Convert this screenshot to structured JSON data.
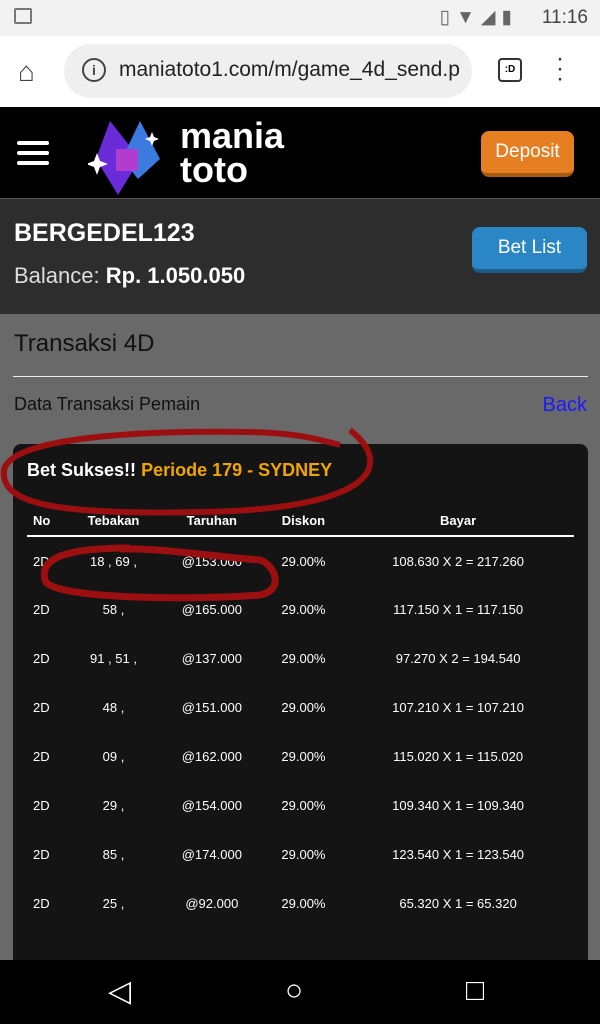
{
  "status_bar": {
    "time": "11:16"
  },
  "browser": {
    "url": "maniatoto1.com/m/game_4d_send.p",
    "tabs_label": ":D"
  },
  "header": {
    "logo_top": "mania",
    "logo_bottom": "toto",
    "deposit_label": "Deposit"
  },
  "user": {
    "username": "BERGEDEL123",
    "balance_label": "Balance:",
    "balance_value": "Rp. 1.050.050",
    "bet_list_label": "Bet List"
  },
  "page": {
    "title": "Transaksi 4D",
    "subtitle": "Data Transaksi Pemain",
    "back_label": "Back"
  },
  "result": {
    "status": "Bet Sukses!!",
    "period": "Periode 179 - SYDNEY"
  },
  "table": {
    "headers": [
      "No",
      "Tebakan",
      "Taruhan",
      "Diskon",
      "Bayar"
    ],
    "rows": [
      [
        "2D",
        "18 , 69 ,",
        "@153.000",
        "29.00%",
        "108.630 X 2 = 217.260"
      ],
      [
        "2D",
        "58 ,",
        "@165.000",
        "29.00%",
        "117.150 X 1 = 117.150"
      ],
      [
        "2D",
        "91 , 51 ,",
        "@137.000",
        "29.00%",
        "97.270 X 2 = 194.540"
      ],
      [
        "2D",
        "48 ,",
        "@151.000",
        "29.00%",
        "107.210 X 1 = 107.210"
      ],
      [
        "2D",
        "09 ,",
        "@162.000",
        "29.00%",
        "115.020 X 1 = 115.020"
      ],
      [
        "2D",
        "29 ,",
        "@154.000",
        "29.00%",
        "109.340 X 1 = 109.340"
      ],
      [
        "2D",
        "85 ,",
        "@174.000",
        "29.00%",
        "123.540 X 1 = 123.540"
      ],
      [
        "2D",
        "25 ,",
        "@92.000",
        "29.00%",
        "65.320 X 1 = 65.320"
      ]
    ]
  },
  "colors": {
    "deposit": "#e67e22",
    "bet_list": "#2a86c4",
    "period": "#f0a500",
    "annotation": "#9b0f10"
  }
}
